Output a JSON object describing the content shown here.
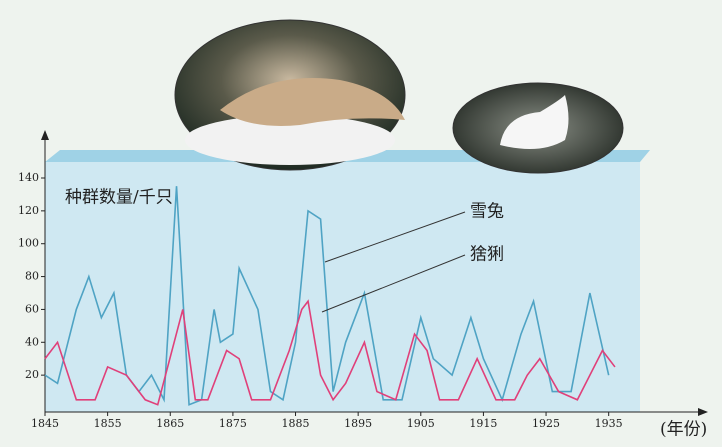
{
  "chart_data": {
    "type": "line",
    "ylabel": "种群数量/千只",
    "xlabel": "(年份)",
    "xlim": [
      1845,
      1940
    ],
    "xticks": [
      1845,
      1855,
      1865,
      1875,
      1885,
      1895,
      1905,
      1915,
      1925,
      1935
    ],
    "ylim": [
      0,
      140
    ],
    "yticks": [
      20,
      40,
      60,
      80,
      100,
      120,
      140
    ],
    "series": [
      {
        "name": "雪兔",
        "color": "#4fa3c4",
        "x": [
          1845,
          1847,
          1850,
          1852,
          1854,
          1856,
          1858,
          1860,
          1862,
          1864,
          1866,
          1868,
          1870,
          1872,
          1873,
          1875,
          1876,
          1879,
          1881,
          1883,
          1885,
          1887,
          1889,
          1891,
          1893,
          1896,
          1899,
          1902,
          1905,
          1907,
          1910,
          1913,
          1915,
          1918,
          1921,
          1923,
          1926,
          1929,
          1932,
          1935
        ],
        "values": [
          20,
          15,
          60,
          80,
          55,
          70,
          20,
          10,
          20,
          5,
          135,
          2,
          5,
          60,
          40,
          45,
          85,
          60,
          10,
          5,
          40,
          120,
          115,
          10,
          40,
          70,
          5,
          5,
          55,
          30,
          20,
          55,
          30,
          5,
          45,
          65,
          10,
          10,
          70,
          20
        ]
      },
      {
        "name": "猞猁",
        "color": "#e0407a",
        "x": [
          1845,
          1847,
          1850,
          1853,
          1855,
          1858,
          1861,
          1863,
          1867,
          1869,
          1871,
          1874,
          1876,
          1878,
          1881,
          1884,
          1886,
          1887,
          1889,
          1891,
          1893,
          1896,
          1898,
          1901,
          1904,
          1906,
          1908,
          1911,
          1914,
          1917,
          1920,
          1922,
          1924,
          1927,
          1930,
          1934,
          1936
        ],
        "values": [
          30,
          40,
          5,
          5,
          25,
          20,
          5,
          2,
          60,
          5,
          5,
          35,
          30,
          5,
          5,
          35,
          60,
          65,
          20,
          5,
          15,
          40,
          10,
          5,
          45,
          35,
          5,
          5,
          30,
          5,
          5,
          20,
          30,
          10,
          5,
          35,
          25
        ]
      }
    ]
  }
}
